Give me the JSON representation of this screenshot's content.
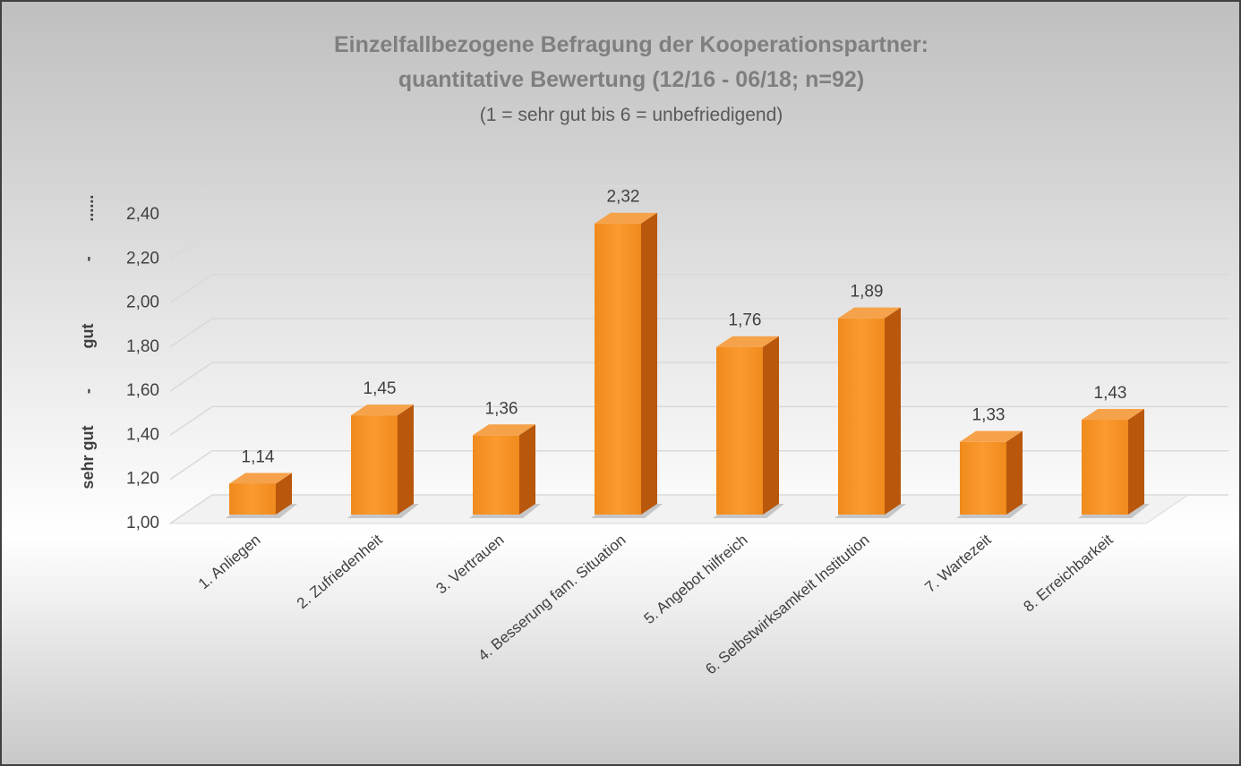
{
  "chart_data": {
    "type": "bar",
    "title": "Einzelfallbezogene Befragung der Kooperationspartner:",
    "title_line2": "quantitative Bewertung (12/16 - 06/18; n=92)",
    "subtitle": "(1 = sehr gut bis 6 = unbefriedigend)",
    "y_axis_labels": [
      "sehr gut",
      "-",
      "gut",
      "-",
      "......"
    ],
    "categories": [
      "1. Anliegen",
      "2. Zufriedenheit",
      "3. Vertrauen",
      "4. Besserung fam. Situation",
      "5. Angebot hilfreich",
      "6. Selbstwirksamkeit Institution",
      "7. Wartezeit",
      "8. Erreichbarkeit"
    ],
    "values": [
      1.14,
      1.45,
      1.36,
      2.32,
      1.76,
      1.89,
      1.33,
      1.43
    ],
    "value_labels": [
      "1,14",
      "1,45",
      "1,36",
      "2,32",
      "1,76",
      "1,89",
      "1,33",
      "1,43"
    ],
    "color": "#f7931e",
    "ylim": [
      1.0,
      2.4
    ],
    "yticks": [
      {
        "value": 1.0,
        "label": "1,00"
      },
      {
        "value": 1.2,
        "label": "1,20"
      },
      {
        "value": 1.4,
        "label": "1,40"
      },
      {
        "value": 1.6,
        "label": "1,60"
      },
      {
        "value": 1.8,
        "label": "1,80"
      },
      {
        "value": 2.0,
        "label": "2,00"
      },
      {
        "value": 2.2,
        "label": "2,20"
      },
      {
        "value": 2.4,
        "label": "2,40"
      }
    ],
    "grid": true
  }
}
